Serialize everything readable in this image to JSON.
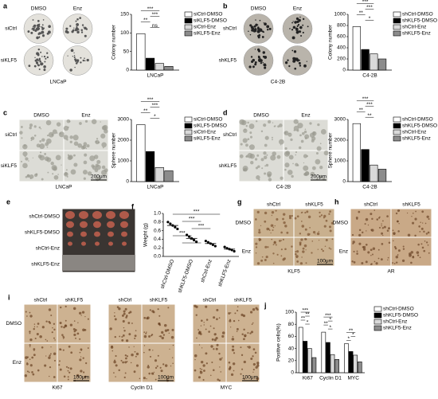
{
  "chart_data": [
    {
      "type": "bar",
      "ylabel": "Colony number",
      "categories": [
        "LNCaP"
      ],
      "ylim": [
        0,
        150
      ],
      "yticks": [
        0,
        50,
        100,
        150
      ],
      "series": [
        {
          "name": "siCtrl-DMSO",
          "color": "#ffffff",
          "values": [
            98
          ]
        },
        {
          "name": "siKLF5-DMSO",
          "color": "#000000",
          "values": [
            32
          ]
        },
        {
          "name": "siCtrl-Enz",
          "color": "#d9d9d9",
          "values": [
            18
          ]
        },
        {
          "name": "siKLF5-Enz",
          "color": "#8c8c8c",
          "values": [
            10
          ]
        }
      ],
      "annotations": [
        "***",
        "***",
        "**",
        "ns"
      ]
    },
    {
      "type": "bar",
      "ylabel": "Colony number",
      "categories": [
        "C4-2B"
      ],
      "ylim": [
        0,
        1000
      ],
      "yticks": [
        0,
        200,
        400,
        600,
        800,
        1000
      ],
      "series": [
        {
          "name": "shCtrl-DMSO",
          "color": "#ffffff",
          "values": [
            780
          ]
        },
        {
          "name": "shKLF5-DMSO",
          "color": "#000000",
          "values": [
            370
          ]
        },
        {
          "name": "shCtrl-Enz",
          "color": "#d9d9d9",
          "values": [
            290
          ]
        },
        {
          "name": "shKLF5-Enz",
          "color": "#8c8c8c",
          "values": [
            200
          ]
        }
      ],
      "annotations": [
        "***",
        "***",
        "**",
        "*"
      ]
    },
    {
      "type": "bar",
      "ylabel": "Sphere number",
      "categories": [
        "LNCaP"
      ],
      "ylim": [
        0,
        3000
      ],
      "yticks": [
        0,
        1000,
        2000,
        3000
      ],
      "series": [
        {
          "name": "siCtrl-DMSO",
          "color": "#ffffff",
          "values": [
            2750
          ]
        },
        {
          "name": "siKLF5-DMSO",
          "color": "#000000",
          "values": [
            1450
          ]
        },
        {
          "name": "siCtrl-Enz",
          "color": "#d9d9d9",
          "values": [
            680
          ]
        },
        {
          "name": "siKLF5-Enz",
          "color": "#8c8c8c",
          "values": [
            520
          ]
        }
      ],
      "annotations": [
        "***",
        "***",
        "**",
        "*"
      ]
    },
    {
      "type": "bar",
      "ylabel": "Sphere number",
      "categories": [
        "C4-2B"
      ],
      "ylim": [
        0,
        3000
      ],
      "yticks": [
        0,
        1000,
        2000,
        3000
      ],
      "series": [
        {
          "name": "shCtrl-DMSO",
          "color": "#ffffff",
          "values": [
            2800
          ]
        },
        {
          "name": "shKLF5-DMSO",
          "color": "#000000",
          "values": [
            1550
          ]
        },
        {
          "name": "shCtrl-Enz",
          "color": "#d9d9d9",
          "values": [
            800
          ]
        },
        {
          "name": "shKLF5-Enz",
          "color": "#8c8c8c",
          "values": [
            600
          ]
        }
      ],
      "annotations": [
        "***",
        "***",
        "**",
        "**"
      ]
    },
    {
      "type": "dotplot",
      "panel": "f",
      "ylabel": "Weight (g)",
      "categories": [
        "shCtrl-DMSO",
        "shKLF5-DMSO",
        "shCtrl-Enz",
        "shKLF5-Enz"
      ],
      "ylim": [
        0,
        1.0
      ],
      "yticks": [
        {
          "value": 0,
          "label": "0.0"
        },
        {
          "value": 0.2,
          "label": "0.2"
        },
        {
          "value": 0.4,
          "label": "0.4"
        },
        {
          "value": 0.6,
          "label": "0.6"
        },
        {
          "value": 0.8,
          "label": "0.8"
        },
        {
          "value": 1.0,
          "label": "1.0"
        }
      ],
      "values": [
        0.72,
        0.42,
        0.3,
        0.17
      ],
      "points": [
        [
          0.8,
          0.76,
          0.72,
          0.68,
          0.64
        ],
        [
          0.5,
          0.46,
          0.42,
          0.38,
          0.34
        ],
        [
          0.36,
          0.33,
          0.3,
          0.27,
          0.24
        ],
        [
          0.22,
          0.19,
          0.17,
          0.15,
          0.12
        ]
      ],
      "annotations": [
        "***",
        "***",
        "***",
        "***",
        "**"
      ]
    },
    {
      "type": "groupedbar",
      "panel": "j",
      "ylabel": "Positive cells(%)",
      "categories": [
        "Ki67",
        "Cyclin D1",
        "MYC"
      ],
      "ylim": [
        0,
        100
      ],
      "yticks": [
        0,
        20,
        40,
        60,
        80,
        100
      ],
      "series": [
        {
          "name": "shCtrl-DMSO",
          "color": "#ffffff",
          "values": [
            75,
            67,
            48
          ]
        },
        {
          "name": "shKLF5-DMSO",
          "color": "#000000",
          "values": [
            52,
            50,
            35
          ]
        },
        {
          "name": "shCtrl-Enz",
          "color": "#d9d9d9",
          "values": [
            40,
            30,
            29
          ]
        },
        {
          "name": "shKLF5-Enz",
          "color": "#8c8c8c",
          "values": [
            25,
            22,
            18
          ]
        }
      ],
      "annotations": [
        [
          "***",
          "**",
          "**",
          "*"
        ],
        [
          "***",
          "*",
          "**",
          "*"
        ],
        [
          "**",
          "*",
          "*"
        ]
      ]
    }
  ],
  "images": [
    {
      "panel": "a",
      "columns": [
        "DMSO",
        "Enz"
      ],
      "rows": [
        "siCtrl",
        "siKLF5"
      ],
      "caption": "LNCaP"
    },
    {
      "panel": "b",
      "columns": [
        "DMSO",
        "Enz"
      ],
      "rows": [
        "shCtrl",
        "shKLF5"
      ],
      "caption": "C4-2B"
    },
    {
      "panel": "c",
      "columns": [
        "DMSO",
        "Enz"
      ],
      "rows": [
        "siCtrl",
        "siKLF5"
      ],
      "caption": "LNCaP",
      "scale": "200μm"
    },
    {
      "panel": "d",
      "columns": [
        "DMSO",
        "Enz"
      ],
      "rows": [
        "shCtrl",
        "shKLF5"
      ],
      "caption": "C4-2B",
      "scale": "200μm"
    },
    {
      "panel": "e",
      "rows": [
        "shCtrl-DMSO",
        "shKLF5-DMSO",
        "shCtrl-Enz",
        "shKLF5-Enz"
      ]
    },
    {
      "panel": "g",
      "columns": [
        "shCtrl",
        "shKLF5"
      ],
      "rows": [
        "DMSO",
        "Enz"
      ],
      "caption": "KLF5",
      "scale": "100μm"
    },
    {
      "panel": "h",
      "columns": [
        "shCtrl",
        "shKLF5"
      ],
      "rows": [
        "DMSO",
        "Enz"
      ],
      "caption": "AR"
    },
    {
      "panel": "i",
      "columns": [
        "shCtrl",
        "shKLF5"
      ],
      "rows": [
        "DMSO",
        "Enz"
      ],
      "caption": "Ki67",
      "scale": "100μm"
    },
    {
      "columns": [
        "shCtrl",
        "shKLF5"
      ],
      "caption": "Cyclin D1",
      "scale": "100μm"
    },
    {
      "columns": [
        "shCtrl",
        "shKLF5"
      ],
      "caption": "MYC",
      "scale": "100μm"
    }
  ]
}
